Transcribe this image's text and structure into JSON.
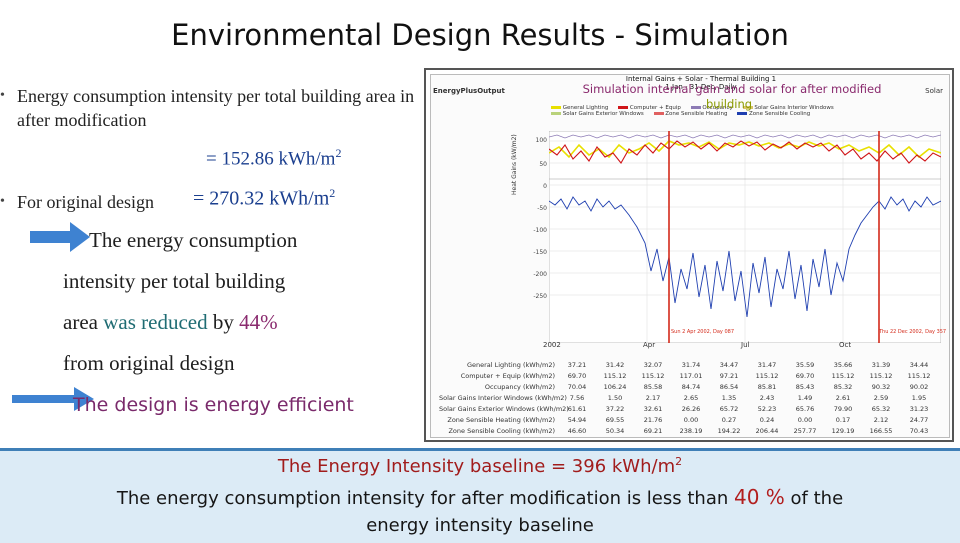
{
  "slide": {
    "title": "Environmental  Design Results - Simulation",
    "bullet1": "Energy consumption intensity per total building area in after modification",
    "value1": "=  152.86 kWh/m",
    "value1_sup": "2",
    "bullet2": "For original design",
    "value2": "= 270.32 kWh/m",
    "value2_sup": "2",
    "stmt_line1": "The energy consumption",
    "stmt_line2": "intensity per total building",
    "stmt_line3_a": "area ",
    "stmt_line3_b": "was reduced",
    "stmt_line3_c": " by ",
    "stmt_line3_d": "44%",
    "stmt_line4": "from original design",
    "efficient": "The design is energy efficient",
    "sim_caption": "Simulation internal gain and solar for after modified",
    "sim_caption_line2": "building"
  },
  "bottom": {
    "line1": "The Energy Intensity baseline = 396 kWh/m",
    "line1_sup": "2",
    "line2_a": "The energy consumption intensity for after modification is less than ",
    "line2_b": "40 %",
    "line2_c": " of the",
    "line3": "energy intensity baseline"
  },
  "panel": {
    "app_logo": "EnergyPlusOutput",
    "app_corner": "Solar",
    "chart_title": "Internal Gains + Solar - Thermal Building 1",
    "chart_subtitle": "1 Jan - 31 Dec, Daily",
    "y_label": "Heat Gains (kW/m2)",
    "y_ticks": [
      "100",
      "50",
      "0",
      "-50",
      "-100",
      "-150",
      "-200",
      "-250"
    ],
    "months": [
      "2002",
      "Apr",
      "Jul",
      "Oct"
    ],
    "table_labels": [
      "General Lighting (kWh/m2)",
      "Computer + Equip (kWh/m2)",
      "Occupancy (kWh/m2)",
      "Solar Gains Interior Windows (kWh/m2)",
      "Solar Gains Exterior Windows (kWh/m2)",
      "Zone Sensible Heating (kWh/m2)",
      "Zone Sensible Cooling (kWh/m2)"
    ],
    "table_values": [
      [
        "37.21",
        "31.42",
        "32.07",
        "31.74",
        "34.47",
        "31.47",
        "35.59",
        "35.66",
        "31.39",
        "34.44"
      ],
      [
        "69.70",
        "115.12",
        "115.12",
        "117.01",
        "97.21",
        "115.12",
        "69.70",
        "115.12",
        "115.12",
        "115.12"
      ],
      [
        "70.04",
        "106.24",
        "85.58",
        "84.74",
        "86.54",
        "85.81",
        "85.43",
        "85.32",
        "90.32",
        "90.02"
      ],
      [
        "7.56",
        "1.50",
        "2.17",
        "2.65",
        "1.35",
        "2.43",
        "1.49",
        "2.61",
        "2.59",
        "1.95"
      ],
      [
        "61.61",
        "37.22",
        "32.61",
        "26.26",
        "65.72",
        "52.23",
        "65.76",
        "79.90",
        "65.32",
        "31.23"
      ],
      [
        "54.94",
        "69.55",
        "21.76",
        "0.00",
        "0.27",
        "0.24",
        "0.00",
        "0.17",
        "2.12",
        "24.77"
      ],
      [
        "46.60",
        "50.34",
        "69.21",
        "238.19",
        "194.22",
        "206.44",
        "257.77",
        "129.19",
        "166.55",
        "70.43"
      ]
    ],
    "legend_a": "General Lighting",
    "legend_b": "Computer + Equip",
    "legend_c": "Occupancy",
    "legend_d": "Solar Gains Interior Windows",
    "legend_e": "Solar Gains Exterior Windows",
    "legend_f": "Zone Sensible Heating",
    "legend_g": "Zone Sensible Cooling",
    "marker_left": "Sun 2 Apr 2002, Day 087",
    "marker_right": "Thu 22 Dec 2002, Day 357"
  },
  "colors": {
    "arrow": "#3e82d1",
    "line_red": "#d0161a",
    "line_yellow": "#e8e000",
    "line_blue": "#1f3fb0",
    "line_purple": "#8d7bb5",
    "marker": "#d42a1a"
  }
}
